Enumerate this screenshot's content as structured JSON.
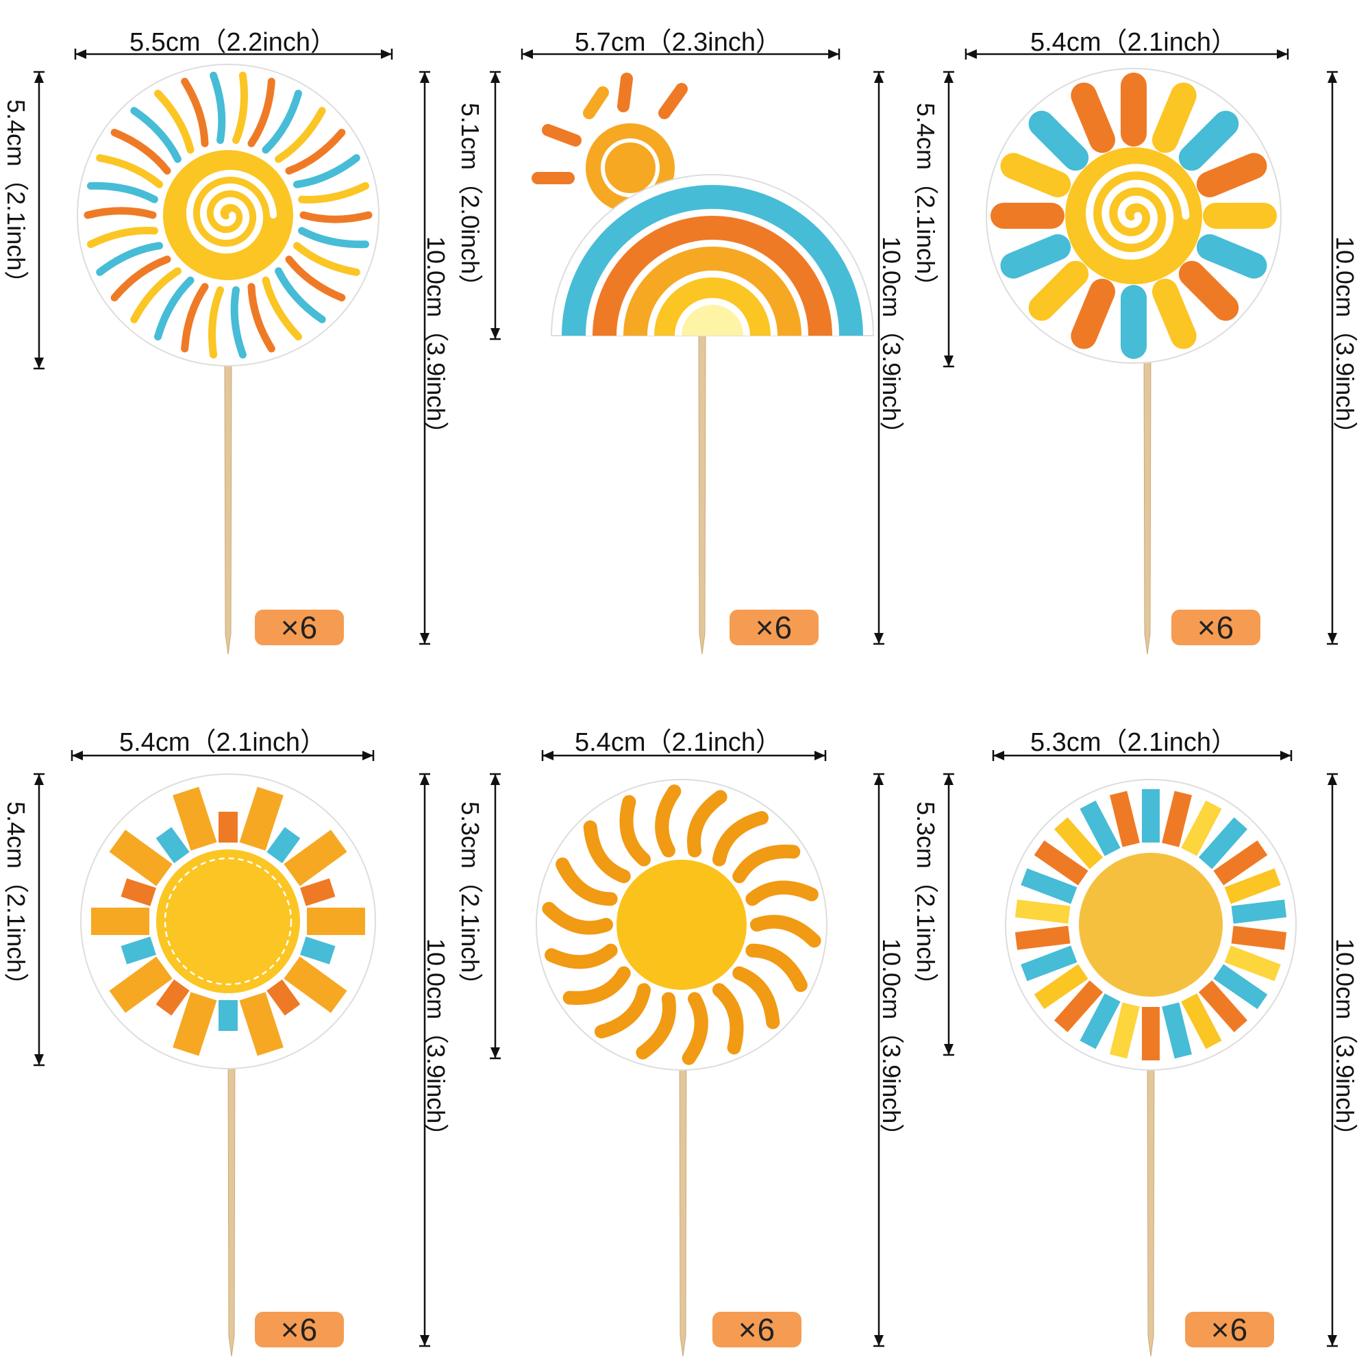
{
  "colors": {
    "orange": "#ef7a26",
    "blue": "#47bcd6",
    "yellow": "#fbc523",
    "gold": "#f6a823",
    "stick": "#e3c79a",
    "badge": "#f59c52"
  },
  "toppers": [
    {
      "id": "swirl-sun-wavy",
      "width_label": "5.5cm（2.2inch）",
      "height_label": "5.4cm（2.1inch）",
      "total_label": "10.0cm（3.9inch）",
      "quantity": "×6"
    },
    {
      "id": "rainbow-sun",
      "width_label": "5.7cm（2.3inch）",
      "height_label": "5.1cm（2.0inch）",
      "total_label": "10.0cm（3.9inch）",
      "quantity": "×6"
    },
    {
      "id": "swirl-sun-petals",
      "width_label": "5.4cm（2.1inch）",
      "height_label": "5.4cm（2.1inch）",
      "total_label": "10.0cm（3.9inch）",
      "quantity": "×6"
    },
    {
      "id": "striped-sun",
      "width_label": "5.4cm（2.1inch）",
      "height_label": "5.4cm（2.1inch）",
      "total_label": "10.0cm（3.9inch）",
      "quantity": "×6"
    },
    {
      "id": "flame-sun",
      "width_label": "5.4cm（2.1inch）",
      "height_label": "5.3cm（2.1inch）",
      "total_label": "10.0cm（3.9inch）",
      "quantity": "×6"
    },
    {
      "id": "ray-sun",
      "width_label": "5.3cm（2.1inch）",
      "height_label": "5.3cm（2.1inch）",
      "total_label": "10.0cm（3.9inch）",
      "quantity": "×6"
    }
  ]
}
